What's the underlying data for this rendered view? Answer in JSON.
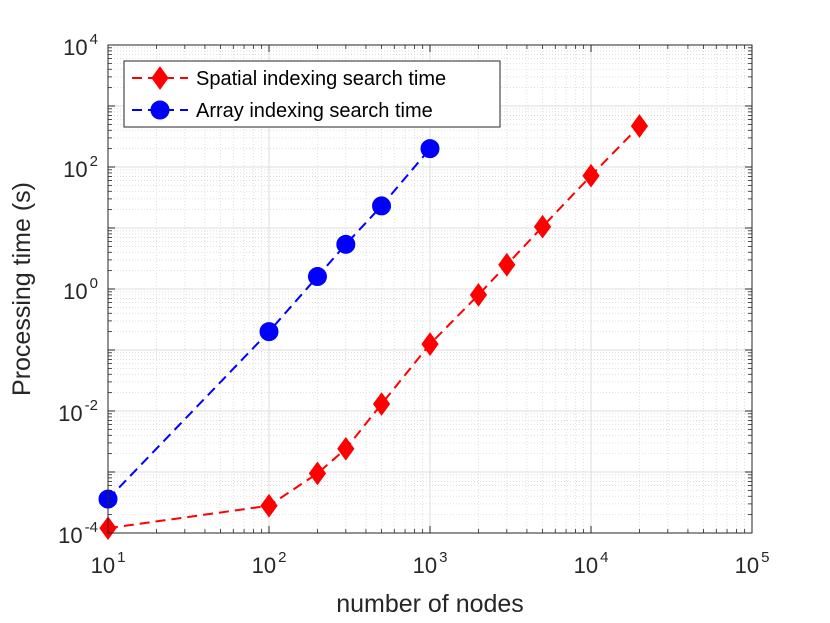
{
  "chart_data": {
    "type": "line",
    "xlabel": "number of nodes",
    "ylabel": "Processing time (s)",
    "xscale": "log",
    "yscale": "log",
    "xlim": [
      10,
      100000
    ],
    "ylim": [
      0.0001,
      10000
    ],
    "x_ticks": [
      {
        "base": "10",
        "exp": "1",
        "value": 10
      },
      {
        "base": "10",
        "exp": "2",
        "value": 100
      },
      {
        "base": "10",
        "exp": "3",
        "value": 1000
      },
      {
        "base": "10",
        "exp": "4",
        "value": 10000
      },
      {
        "base": "10",
        "exp": "5",
        "value": 100000
      }
    ],
    "y_ticks": [
      {
        "base": "10",
        "exp": "-4",
        "value": 0.0001
      },
      {
        "base": "10",
        "exp": "-2",
        "value": 0.01
      },
      {
        "base": "10",
        "exp": "0",
        "value": 1
      },
      {
        "base": "10",
        "exp": "2",
        "value": 100
      },
      {
        "base": "10",
        "exp": "4",
        "value": 10000
      }
    ],
    "grid": true,
    "minor_grid": true,
    "legend_position": "top-left",
    "series": [
      {
        "name": "Spatial indexing search time",
        "color": "#ff0000",
        "marker": "diamond",
        "line_style": "dashed",
        "x": [
          10,
          100,
          200,
          300,
          500,
          1000,
          2000,
          3000,
          5000,
          10000,
          20000
        ],
        "y": [
          0.00012,
          0.00028,
          0.00095,
          0.0024,
          0.013,
          0.125,
          0.8,
          2.5,
          10.5,
          72,
          470
        ]
      },
      {
        "name": "Array indexing search time",
        "color": "#0000ff",
        "marker": "circle",
        "line_style": "dashed",
        "x": [
          10,
          100,
          200,
          300,
          500,
          1000
        ],
        "y": [
          0.00036,
          0.2,
          1.6,
          5.4,
          23,
          200
        ]
      }
    ]
  }
}
